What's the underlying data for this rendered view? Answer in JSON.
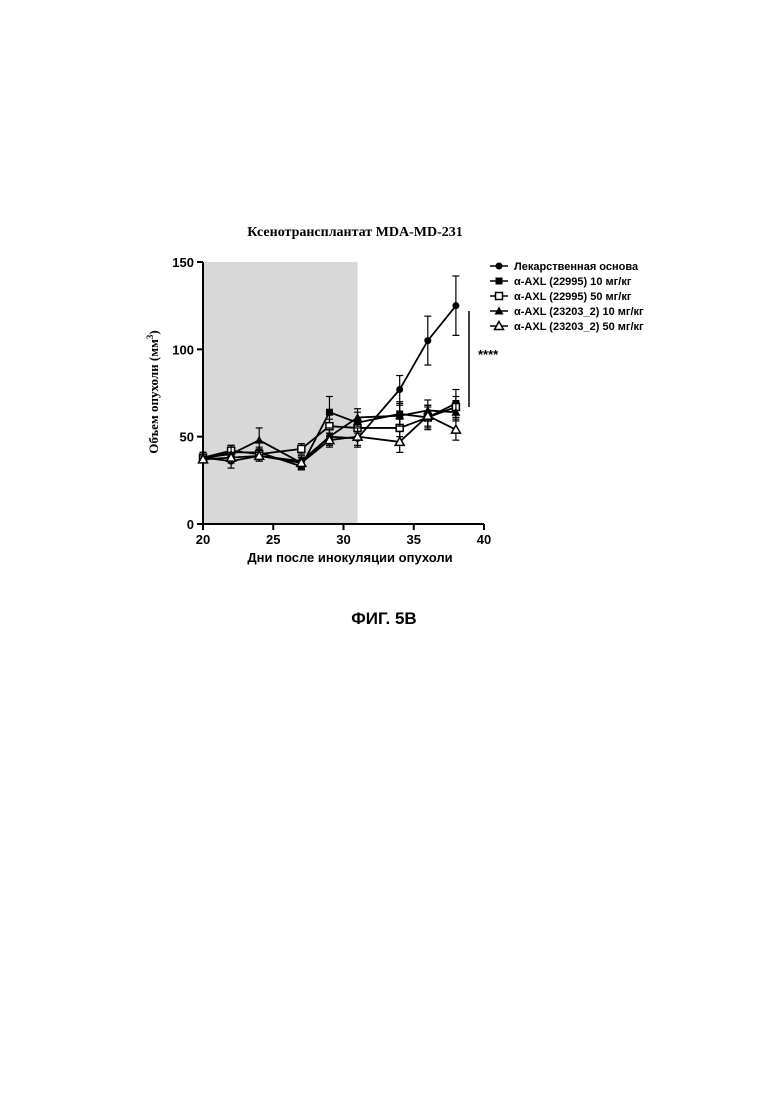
{
  "chart_data": {
    "type": "line",
    "title": "Ксенотрансплантат MDA-MD-231",
    "ylabel": "Объем опухоли (мм",
    "ylabel_sup": "3",
    "ylabel_close": ")",
    "xlabel": "Дни после инокуляции опухоли",
    "xlim": [
      20,
      40
    ],
    "ylim": [
      0,
      150
    ],
    "xticks": [
      "20",
      "25",
      "30",
      "35",
      "40"
    ],
    "yticks": [
      "0",
      "50",
      "100",
      "150"
    ],
    "shaded_region": [
      20,
      31
    ],
    "legend_position": "right",
    "x": [
      20,
      22,
      24,
      27,
      29,
      31,
      34,
      36,
      38
    ],
    "series": [
      {
        "name": "Лекарственная основа",
        "marker": "circle",
        "values": [
          38,
          36,
          39,
          36,
          50,
          49,
          77,
          105,
          125
        ],
        "errors": [
          2,
          4,
          3,
          3,
          5,
          5,
          8,
          14,
          17
        ]
      },
      {
        "name": "α-AXL (22995) 10 мг/кг",
        "marker": "square-filled",
        "values": [
          37,
          41,
          41,
          33,
          64,
          58,
          63,
          61,
          69
        ],
        "errors": [
          2,
          4,
          3,
          2,
          9,
          6,
          7,
          7,
          8
        ]
      },
      {
        "name": "α-AXL (22995) 50 мг/кг",
        "marker": "square-open",
        "values": [
          38,
          42,
          40,
          43,
          56,
          55,
          55,
          61,
          67
        ],
        "errors": [
          3,
          3,
          3,
          3,
          4,
          5,
          5,
          6,
          6
        ]
      },
      {
        "name": "α-AXL (23203_2) 10 мг/кг",
        "marker": "triangle",
        "values": [
          38,
          40,
          48,
          35,
          50,
          61,
          62,
          65,
          64
        ],
        "errors": [
          3,
          5,
          7,
          4,
          5,
          5,
          6,
          6,
          5
        ]
      },
      {
        "name": "α-AXL (23203_2) 50 мг/кг",
        "marker": "triangle-open",
        "values": [
          37,
          38,
          39,
          35,
          48,
          50,
          47,
          62,
          54
        ],
        "errors": [
          2,
          3,
          3,
          3,
          4,
          5,
          6,
          6,
          6
        ]
      }
    ],
    "annotations": [
      {
        "text": "****"
      }
    ]
  },
  "figure_caption": "ФИГ. 5В"
}
